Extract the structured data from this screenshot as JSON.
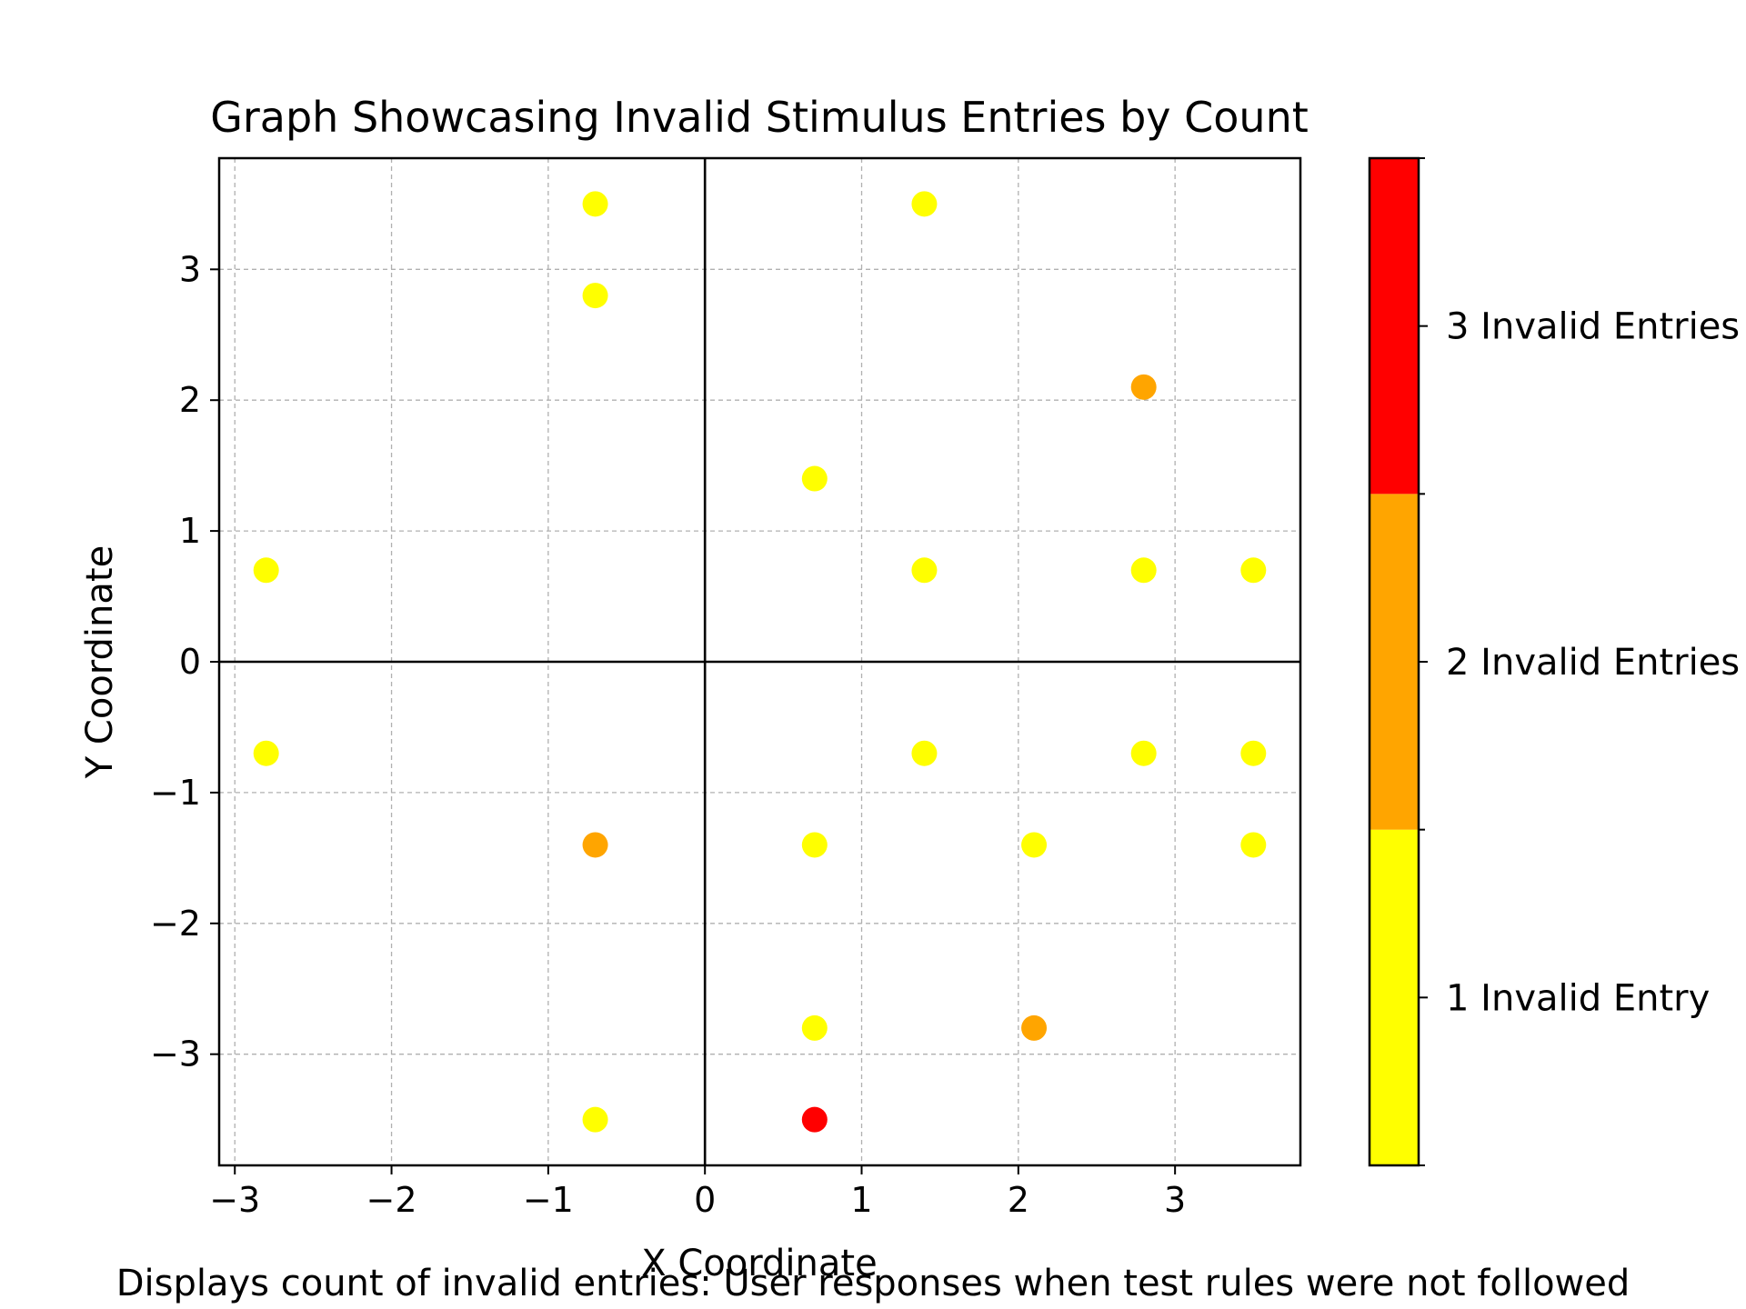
{
  "chart_data": {
    "type": "scatter",
    "title": "Graph Showcasing Invalid Stimulus Entries by Count",
    "xlabel": "X Coordinate",
    "ylabel": "Y Coordinate",
    "caption": "Displays count of invalid entries: User responses when test rules were not followed",
    "xlim": [
      -3.1,
      3.8
    ],
    "ylim": [
      -3.85,
      3.85
    ],
    "xticks": [
      -3,
      -2,
      -1,
      0,
      1,
      2,
      3
    ],
    "yticks": [
      -3,
      -2,
      -1,
      0,
      1,
      2,
      3
    ],
    "xtick_labels": [
      "−3",
      "−2",
      "−1",
      "0",
      "1",
      "2",
      "3"
    ],
    "ytick_labels": [
      "−3",
      "−2",
      "−1",
      "0",
      "1",
      "2",
      "3"
    ],
    "grid": true,
    "zero_lines": true,
    "colors": {
      "1": "#ffff00",
      "2": "#ffa500",
      "3": "#ff0000"
    },
    "colorbar": {
      "levels": [
        {
          "value": 1,
          "label": "1 Invalid Entry",
          "color": "#ffff00"
        },
        {
          "value": 2,
          "label": "2 Invalid Entries",
          "color": "#ffa500"
        },
        {
          "value": 3,
          "label": "3 Invalid Entries",
          "color": "#ff0000"
        }
      ]
    },
    "points": [
      {
        "x": -0.7,
        "y": 3.5,
        "count": 1
      },
      {
        "x": 1.4,
        "y": 3.5,
        "count": 1
      },
      {
        "x": -0.7,
        "y": 2.8,
        "count": 1
      },
      {
        "x": 2.8,
        "y": 2.1,
        "count": 2
      },
      {
        "x": 0.7,
        "y": 1.4,
        "count": 1
      },
      {
        "x": -2.8,
        "y": 0.7,
        "count": 1
      },
      {
        "x": 1.4,
        "y": 0.7,
        "count": 1
      },
      {
        "x": 2.8,
        "y": 0.7,
        "count": 1
      },
      {
        "x": 3.5,
        "y": 0.7,
        "count": 1
      },
      {
        "x": -2.8,
        "y": -0.7,
        "count": 1
      },
      {
        "x": 1.4,
        "y": -0.7,
        "count": 1
      },
      {
        "x": 2.8,
        "y": -0.7,
        "count": 1
      },
      {
        "x": 3.5,
        "y": -0.7,
        "count": 1
      },
      {
        "x": -0.7,
        "y": -1.4,
        "count": 2
      },
      {
        "x": 0.7,
        "y": -1.4,
        "count": 1
      },
      {
        "x": 2.1,
        "y": -1.4,
        "count": 1
      },
      {
        "x": 3.5,
        "y": -1.4,
        "count": 1
      },
      {
        "x": 0.7,
        "y": -2.8,
        "count": 1
      },
      {
        "x": 2.1,
        "y": -2.8,
        "count": 2
      },
      {
        "x": -0.7,
        "y": -3.5,
        "count": 1
      },
      {
        "x": 0.7,
        "y": -3.5,
        "count": 3
      }
    ]
  }
}
